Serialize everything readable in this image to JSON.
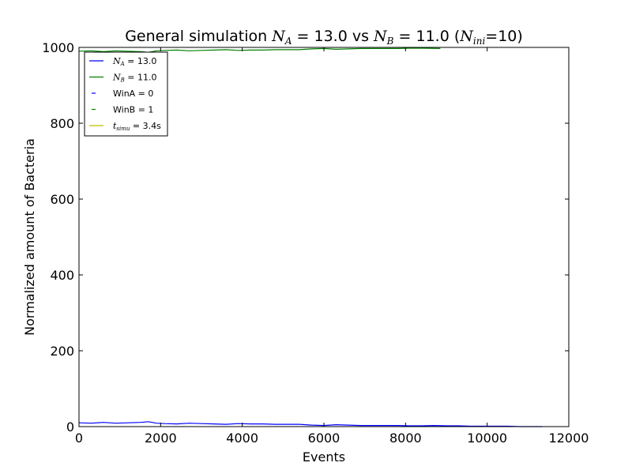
{
  "chart_data": {
    "type": "line",
    "title": {
      "prefix": "General simulation ",
      "na_symbol": "N",
      "na_sub": "A",
      "na_value": " = 13.0 vs ",
      "nb_symbol": "N",
      "nb_sub": "B",
      "nb_value": " = 11.0 (",
      "nini_symbol": "N",
      "nini_sub": "ini",
      "nini_value": "=10)"
    },
    "xlabel": "Events",
    "ylabel": "Normalized amount of Bacteria",
    "xlim": [
      0,
      12000
    ],
    "ylim": [
      0,
      1000
    ],
    "xticks": [
      "0",
      "2000",
      "4000",
      "6000",
      "8000",
      "10000",
      "12000"
    ],
    "xtick_values": [
      0,
      2000,
      4000,
      6000,
      8000,
      10000,
      12000
    ],
    "yticks": [
      "0",
      "200",
      "400",
      "600",
      "800",
      "1000"
    ],
    "ytick_values": [
      0,
      200,
      400,
      600,
      800,
      1000
    ],
    "grid": false,
    "legend_position": "top-left",
    "legend": [
      {
        "symbol": "N",
        "sub": "A",
        "text": " = 13.0",
        "color": "#0000ff",
        "style": "solid"
      },
      {
        "symbol": "N",
        "sub": "B",
        "text": " = 11.0",
        "color": "#008000",
        "style": "solid"
      },
      {
        "symbol": "",
        "sub": "",
        "text": "WinA = 0",
        "color": "#0000ff",
        "style": "dash"
      },
      {
        "symbol": "",
        "sub": "",
        "text": "WinB = 1",
        "color": "#008000",
        "style": "dash"
      },
      {
        "symbol": "t",
        "sub": "simu",
        "text": " = 3.4s",
        "color": "#bfbf00",
        "style": "solid"
      }
    ],
    "series": [
      {
        "color": "#0000ff",
        "x": [
          0,
          300,
          600,
          900,
          1200,
          1500,
          1700,
          1900,
          2100,
          2400,
          2700,
          3000,
          3300,
          3600,
          3900,
          4200,
          4500,
          4800,
          5100,
          5400,
          5700,
          6000,
          6300,
          6600,
          6900,
          7200,
          7500,
          7800,
          8100,
          8400,
          8700,
          9000,
          9300,
          9600,
          9900,
          10200,
          10500,
          10800,
          11100,
          11350
        ],
        "y": [
          10,
          9,
          11,
          9,
          10,
          11,
          13,
          9,
          8,
          7,
          9,
          8,
          7,
          6,
          8,
          7,
          7,
          6,
          6,
          6,
          4,
          3,
          5,
          4,
          3,
          3,
          3,
          3,
          2,
          2,
          3,
          2,
          2,
          1,
          1,
          1,
          1,
          0,
          0,
          0
        ]
      },
      {
        "color": "#008000",
        "x": [
          0,
          300,
          600,
          900,
          1200,
          1500,
          1700,
          1900,
          2100,
          2400,
          2700,
          3000,
          3300,
          3600,
          3900,
          4200,
          4500,
          4800,
          5100,
          5400,
          5700,
          6000,
          6300,
          6600,
          6900,
          7200,
          7500,
          7800,
          8100,
          8400,
          8850
        ],
        "y": [
          990,
          991,
          989,
          991,
          990,
          989,
          987,
          991,
          992,
          993,
          991,
          992,
          993,
          994,
          992,
          993,
          993,
          994,
          994,
          994,
          996,
          997,
          995,
          996,
          997,
          997,
          997,
          997,
          998,
          998,
          997
        ]
      }
    ]
  }
}
